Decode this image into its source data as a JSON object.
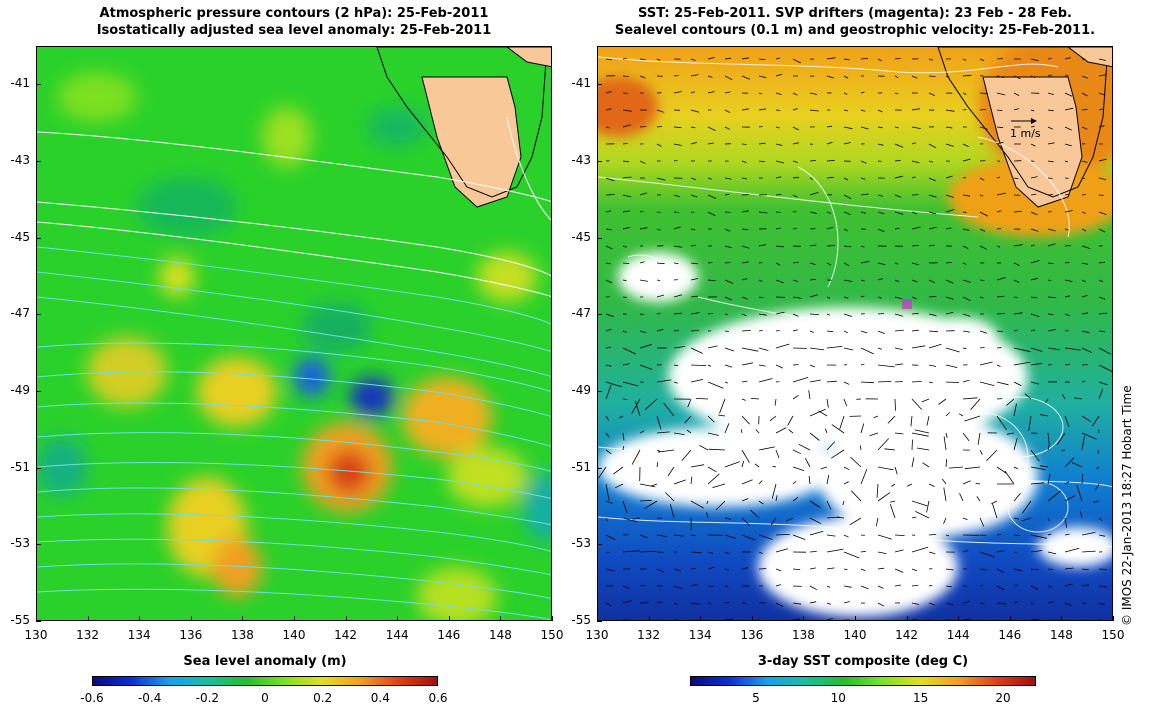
{
  "left_panel": {
    "title_line1": "Atmospheric pressure contours (2 hPa): 25-Feb-2011",
    "title_line2": "Isostatically adjusted sea level anomaly: 25-Feb-2011",
    "colorbar_title": "Sea level anomaly (m)",
    "colorbar_ticks": [
      "-0.6",
      "-0.4",
      "-0.2",
      "0",
      "0.2",
      "0.4",
      "0.6"
    ]
  },
  "right_panel": {
    "title_line1": "SST: 25-Feb-2011. SVP drifters (magenta): 23 Feb - 28 Feb.",
    "title_line2": "Sealevel contours (0.1 m) and geostrophic velocity: 25-Feb-2011.",
    "colorbar_title": "3-day SST composite (deg C)",
    "colorbar_ticks": [
      "5",
      "10",
      "15",
      "20"
    ],
    "velocity_scale_label": "1 m/s"
  },
  "axes": {
    "y_ticks": [
      "-41",
      "-43",
      "-45",
      "-47",
      "-49",
      "-51",
      "-53",
      "-55"
    ],
    "x_ticks": [
      "130",
      "132",
      "134",
      "136",
      "138",
      "140",
      "142",
      "144",
      "146",
      "148",
      "150"
    ],
    "lon_range": [
      130,
      150
    ],
    "lat_range": [
      -55,
      -40
    ]
  },
  "credit": "© IMOS 22-Jan-2013 18:27 Hobart Time",
  "colors": {
    "land": "#f8c898",
    "sla_neutral": "#2ad12a",
    "sla_positive": "#e8d020",
    "sla_negative": "#1860e0",
    "pressure_contour": "#6ee0e0",
    "sst_warm": "#f09018",
    "sst_mid": "#30c030",
    "sst_cold": "#1040c0",
    "drifter": "#c040c0"
  }
}
